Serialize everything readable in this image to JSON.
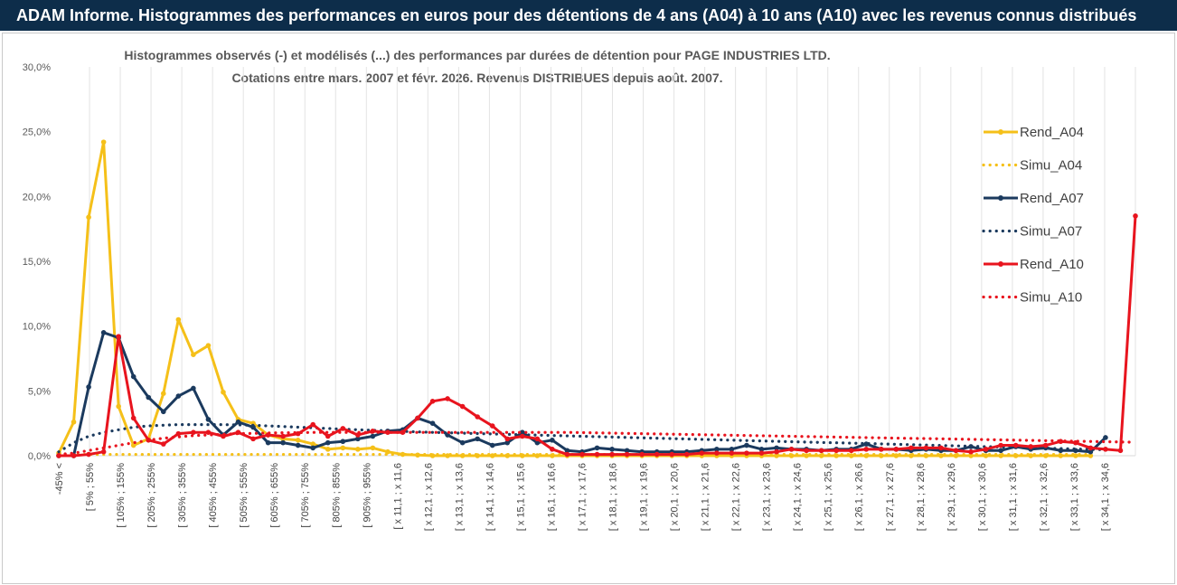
{
  "header": {
    "title": "ADAM Informe. Histogrammes des performances en euros pour des détentions de 4 ans (A04) à 10 ans (A10) avec les revenus connus distribués"
  },
  "chart_data": {
    "type": "line",
    "title": "Histogrammes observés (-) et modélisés (...) des performances par durées de détention pour PAGE INDUSTRIES LTD.",
    "subtitle": "Cotations entre mars. 2007 et févr. 2026. Revenus DISTRIBUES depuis août. 2007.",
    "xlabel": "",
    "ylabel": "",
    "ylim": [
      0,
      30
    ],
    "y_ticks": [
      "0,0%",
      "5,0%",
      "10,0%",
      "15,0%",
      "20,0%",
      "25,0%",
      "30,0%"
    ],
    "grid": "vertical",
    "legend_position": "right",
    "x_tick_labels": [
      "-45% <",
      "[ 5% ; 55%",
      "[ 105% ; 155%",
      "[ 205% ; 255%",
      "[ 305% ; 355%",
      "[ 405% ; 455%",
      "[ 505% ; 555%",
      "[ 605% ; 655%",
      "[ 705% ; 755%",
      "[ 805% ; 855%",
      "[ 905% ; 955%",
      "[ x 11,1 ; x 11,6",
      "[ x 12,1 ; x 12,6",
      "[ x 13,1 ; x 13,6",
      "[ x 14,1 ; x 14,6",
      "[ x 15,1 ; x 15,6",
      "[ x 16,1 ; x 16,6",
      "[ x 17,1 ; x 17,6",
      "[ x 18,1 ; x 18,6",
      "[ x 19,1 ; x 19,6",
      "[ x 20,1 ; x 20,6",
      "[ x 21,1 ; x 21,6",
      "[ x 22,1 ; x 22,6",
      "[ x 23,1 ; x 23,6",
      "[ x 24,1 ; x 24,6",
      "[ x 25,1 ; x 25,6",
      "[ x 26,1 ; x 26,6",
      "[ x 27,1 ; x 27,6",
      "[ x 28,1 ; x 28,6",
      "[ x 29,1 ; x 29,6",
      "[ x 30,1 ; x 30,6",
      "[ x 31,1 ; x 31,6",
      "[ x 32,1 ; x 32,6",
      "[ x 33,1 ; x 33,6",
      "[ x 34,1 ; x 34,6"
    ],
    "series": [
      {
        "name": "Rend_A04",
        "style": "solid",
        "color": "#f5c019",
        "values": [
          0.2,
          2.6,
          18.4,
          24.2,
          3.8,
          0.8,
          1.3,
          4.8,
          10.5,
          7.8,
          8.5,
          4.9,
          2.8,
          2.5,
          1.6,
          1.3,
          1.2,
          0.9,
          0.5,
          0.6,
          0.5,
          0.6,
          0.3,
          0.1,
          0.05,
          0,
          0,
          0,
          0,
          0,
          0,
          0,
          0,
          0,
          0,
          0,
          0,
          0,
          0,
          0,
          0,
          0,
          0,
          0,
          0,
          0,
          0,
          0,
          0,
          0,
          0,
          0,
          0,
          0,
          0,
          0,
          0,
          0,
          0,
          0,
          0,
          0,
          0,
          0,
          0,
          0,
          0,
          0,
          0,
          0
        ]
      },
      {
        "name": "Simu_A04",
        "style": "dotted",
        "color": "#f5c019",
        "values": [
          0.1,
          0.1,
          0.1,
          0.1,
          0.1,
          0.1,
          0.1,
          0.1,
          0.1,
          0.1,
          0.1,
          0.1,
          0.1,
          0.1,
          0.1,
          0.1,
          0.1,
          0.1,
          0.1,
          0.1,
          0.1,
          0.1,
          0.1,
          0.1,
          0.1,
          0.1,
          0.1,
          0.1,
          0.1,
          0.1,
          0.1,
          0.1,
          0.1,
          0.1,
          0.1,
          0.1,
          0.1,
          0.1,
          0.1,
          0.1,
          0.1,
          0.1,
          0.1,
          0.1,
          0.1,
          0.1,
          0.1,
          0.1,
          0.1,
          0.1,
          0.1,
          0.1,
          0.1,
          0.1,
          0.1,
          0.1,
          0.1,
          0.1,
          0.1,
          0.1,
          0.1,
          0.1,
          0.1,
          0.1,
          0.1,
          0.1,
          0.1,
          0.1,
          0.1,
          0.1
        ]
      },
      {
        "name": "Rend_A07",
        "style": "solid",
        "color": "#1b3a5e",
        "values": [
          0,
          0,
          5.3,
          9.5,
          9.1,
          6.1,
          4.5,
          3.4,
          4.6,
          5.2,
          2.8,
          1.6,
          2.6,
          2.2,
          1.0,
          1.0,
          0.8,
          0.6,
          1.0,
          1.1,
          1.3,
          1.5,
          1.9,
          2.0,
          2.9,
          2.5,
          1.6,
          1.0,
          1.3,
          0.8,
          1.0,
          1.8,
          1.0,
          1.2,
          0.4,
          0.3,
          0.6,
          0.5,
          0.4,
          0.3,
          0.3,
          0.3,
          0.3,
          0.4,
          0.5,
          0.5,
          0.8,
          0.5,
          0.6,
          0.5,
          0.5,
          0.4,
          0.5,
          0.5,
          0.9,
          0.5,
          0.5,
          0.4,
          0.5,
          0.4,
          0.4,
          0.7,
          0.4,
          0.4,
          0.7,
          0.5,
          0.6,
          0.4,
          0.4,
          0.3,
          1.4
        ]
      },
      {
        "name": "Simu_A07",
        "style": "dotted",
        "color": "#1b3a5e",
        "values": [
          0.3,
          1.0,
          1.5,
          1.8,
          2.0,
          2.2,
          2.3,
          2.35,
          2.4,
          2.4,
          2.4,
          2.4,
          2.38,
          2.35,
          2.3,
          2.25,
          2.2,
          2.15,
          2.1,
          2.05,
          2.0,
          1.96,
          1.92,
          1.88,
          1.84,
          1.8,
          1.77,
          1.74,
          1.71,
          1.68,
          1.65,
          1.62,
          1.59,
          1.56,
          1.53,
          1.5,
          1.47,
          1.44,
          1.41,
          1.38,
          1.35,
          1.32,
          1.29,
          1.26,
          1.23,
          1.2,
          1.17,
          1.14,
          1.11,
          1.08,
          1.05,
          1.02,
          1.0,
          0.97,
          0.94,
          0.91,
          0.88,
          0.85,
          0.82,
          0.79,
          0.76,
          0.73,
          0.7,
          0.67,
          0.64,
          0.61,
          0.58,
          0.55,
          0.52,
          0.49,
          0.46
        ]
      },
      {
        "name": "Rend_A10",
        "style": "solid",
        "color": "#e8141e",
        "values": [
          0,
          0,
          0.1,
          0.3,
          9.2,
          2.9,
          1.2,
          0.9,
          1.7,
          1.8,
          1.8,
          1.5,
          1.8,
          1.3,
          1.6,
          1.5,
          1.7,
          2.4,
          1.5,
          2.1,
          1.6,
          1.9,
          1.8,
          1.8,
          2.9,
          4.2,
          4.4,
          3.8,
          3.0,
          2.3,
          1.3,
          1.5,
          1.3,
          0.5,
          0.1,
          0.1,
          0.1,
          0.1,
          0.1,
          0.1,
          0.1,
          0.1,
          0.1,
          0.2,
          0.2,
          0.2,
          0.2,
          0.2,
          0.3,
          0.5,
          0.4,
          0.4,
          0.4,
          0.4,
          0.5,
          0.5,
          0.5,
          0.6,
          0.6,
          0.6,
          0.4,
          0.3,
          0.5,
          0.8,
          0.8,
          0.7,
          0.8,
          1.1,
          1.0,
          0.6,
          0.5,
          0.4,
          18.5
        ]
      },
      {
        "name": "Simu_A10",
        "style": "dotted",
        "color": "#e8141e",
        "values": [
          0.1,
          0.2,
          0.4,
          0.6,
          0.8,
          1.0,
          1.2,
          1.35,
          1.45,
          1.55,
          1.6,
          1.65,
          1.7,
          1.72,
          1.75,
          1.77,
          1.78,
          1.8,
          1.8,
          1.8,
          1.8,
          1.8,
          1.8,
          1.8,
          1.8,
          1.8,
          1.8,
          1.8,
          1.8,
          1.8,
          1.8,
          1.8,
          1.8,
          1.8,
          1.8,
          1.78,
          1.76,
          1.74,
          1.72,
          1.7,
          1.68,
          1.66,
          1.64,
          1.62,
          1.6,
          1.58,
          1.56,
          1.54,
          1.52,
          1.5,
          1.48,
          1.46,
          1.44,
          1.42,
          1.4,
          1.38,
          1.36,
          1.34,
          1.32,
          1.3,
          1.28,
          1.26,
          1.24,
          1.22,
          1.2,
          1.18,
          1.16,
          1.14,
          1.12,
          1.1,
          1.08,
          1.06,
          1.04
        ]
      }
    ]
  }
}
